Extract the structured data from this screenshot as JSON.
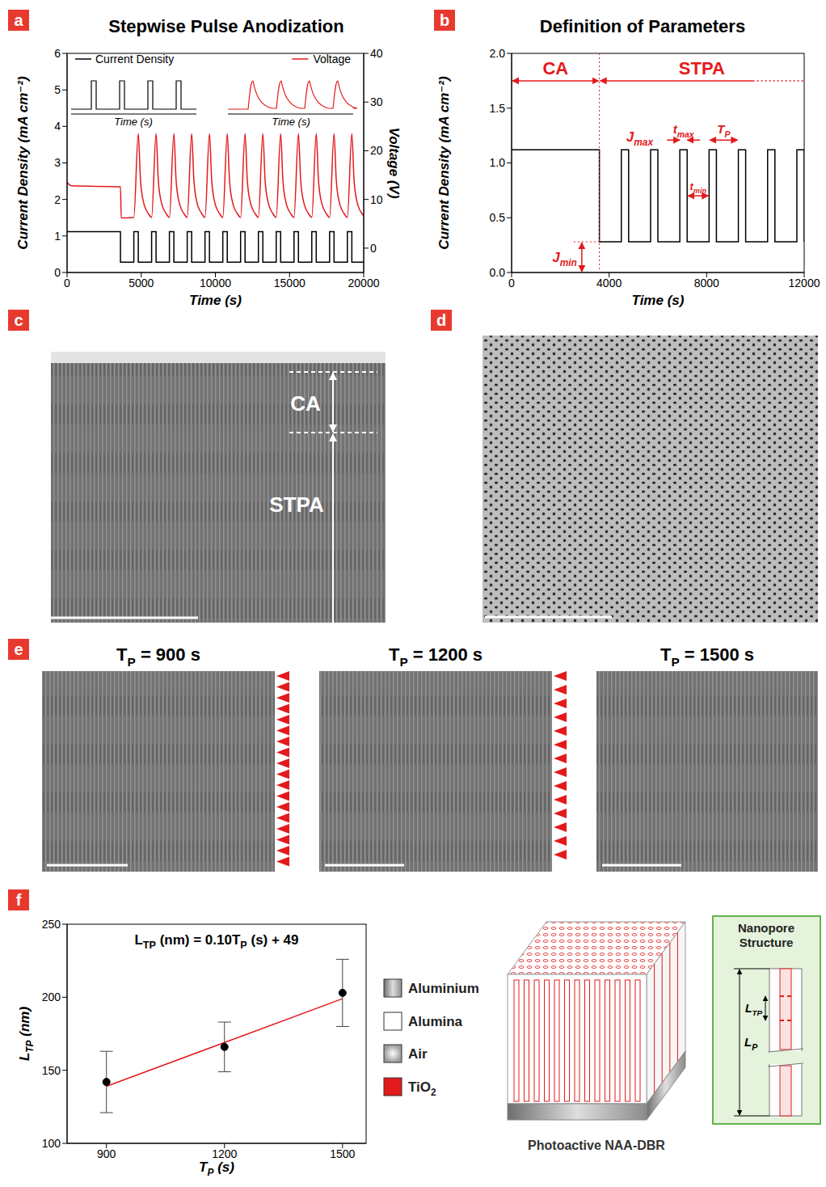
{
  "chart_data": [
    {
      "panel": "a",
      "type": "line",
      "title": "Stepwise Pulse Anodization",
      "x_label": "Time (s)",
      "y_label": "Current Density (mA cm⁻²)",
      "y2_label": "Voltage (V)",
      "xlim": [
        0,
        20000
      ],
      "xticks": [
        0,
        5000,
        10000,
        15000,
        20000
      ],
      "ylim": [
        0,
        6
      ],
      "yticks": [
        0,
        1,
        2,
        3,
        4,
        5,
        6
      ],
      "y2lim": [
        -5,
        40
      ],
      "y2ticks": [
        0,
        10,
        20,
        30,
        40
      ],
      "legend": "top",
      "series": [
        {
          "name": "Current Density",
          "type": "step",
          "color": "#000000",
          "x": [
            0,
            3600,
            4500,
            4800,
            5700,
            6000,
            6900,
            7200,
            8100,
            8400,
            9300,
            9600,
            10500,
            10800,
            11700,
            12000,
            12900,
            13200,
            14100,
            14400,
            15300,
            15600,
            16500,
            16800,
            17700,
            18000,
            18900,
            19200,
            20000
          ],
          "values": [
            1.12,
            0.28,
            1.12,
            0.28,
            1.12,
            0.28,
            1.12,
            0.28,
            1.12,
            0.28,
            1.12,
            0.28,
            1.12,
            0.28,
            1.12,
            0.28,
            1.12,
            0.28,
            1.12,
            0.28,
            1.12,
            0.28,
            1.12,
            0.28,
            1.12,
            0.28,
            1.12,
            0.28,
            0.28
          ]
        },
        {
          "name": "Voltage",
          "type": "line",
          "color": "#e31a1c",
          "axis": "y2",
          "x": [
            0,
            300,
            3600,
            3650,
            4500,
            4800,
            4950,
            5150,
            5500,
            5700,
            6000,
            6150,
            6350,
            6700,
            6900,
            7200,
            7350,
            7550,
            7900,
            8100,
            8400,
            8550,
            8750,
            9100,
            9300,
            9600,
            9750,
            9950,
            10300,
            10500,
            10800,
            10950,
            11150,
            11500,
            11700,
            12000,
            12150,
            12350,
            12700,
            12900,
            13200,
            13350,
            13550,
            13900,
            14100,
            14400,
            14550,
            14750,
            15100,
            15300,
            15600,
            15750,
            15950,
            16300,
            16500,
            16800,
            16950,
            17150,
            17500,
            17700,
            18000,
            18150,
            18350,
            18700,
            18900,
            19200,
            19350,
            19550,
            19900,
            20000
          ],
          "values": [
            13.5,
            12.8,
            12.6,
            6.2,
            6.3,
            23.5,
            14,
            9.5,
            7,
            6.3,
            23.5,
            14,
            9.5,
            7,
            6.3,
            23.5,
            14,
            9.5,
            7,
            6.3,
            23.5,
            14,
            9.5,
            7,
            6.3,
            23.5,
            14,
            9.5,
            7,
            6.3,
            23.5,
            14,
            9.5,
            7,
            6.3,
            23.5,
            14,
            9.5,
            7,
            6.3,
            23.5,
            14,
            9.5,
            7,
            6.3,
            23.5,
            14,
            9.5,
            7,
            6.3,
            23.5,
            14,
            9.5,
            7,
            6.3,
            23.5,
            14,
            9.5,
            7,
            6.3,
            23.5,
            14,
            9.5,
            7,
            6.3,
            23.5,
            14,
            9.5,
            7,
            6.6
          ]
        }
      ],
      "insets": [
        {
          "x_label": "Time (s)",
          "color": "#000000"
        },
        {
          "x_label": "Time (s)",
          "color": "#e31a1c"
        }
      ]
    },
    {
      "panel": "b",
      "type": "line",
      "title": "Definition of Parameters",
      "x_label": "Time (s)",
      "y_label": "Current Density (mA cm⁻²)",
      "xlim": [
        0,
        12000
      ],
      "xticks": [
        0,
        4000,
        8000,
        12000
      ],
      "ylim": [
        0,
        2
      ],
      "yticks": [
        {
          "value": 0,
          "label": "0.0"
        },
        0.5,
        {
          "value": 1,
          "label": "1.0"
        },
        1.5,
        {
          "value": 2,
          "label": "2.0"
        }
      ],
      "series": [
        {
          "type": "step",
          "color": "#000000",
          "x": [
            0,
            3600,
            4500,
            4800,
            5700,
            6000,
            6900,
            7200,
            8100,
            8400,
            9300,
            9600,
            10500,
            10800,
            11700,
            12000
          ],
          "values": [
            1.12,
            0.28,
            1.12,
            0.28,
            1.12,
            0.28,
            1.12,
            0.28,
            1.12,
            0.28,
            1.12,
            0.28,
            1.12,
            0.28,
            1.12,
            0.28
          ]
        }
      ],
      "labels": {
        "ca": "CA",
        "stpa": "STPA",
        "j_max": [
          "J",
          {
            "sub": "max"
          }
        ],
        "t_max": [
          "t",
          {
            "sub": "max"
          }
        ],
        "t_p": [
          "T",
          {
            "sub": "P"
          }
        ],
        "t_min": [
          "t",
          {
            "sub": "min"
          }
        ],
        "j_min": [
          "J",
          {
            "sub": "min"
          }
        ]
      }
    },
    {
      "panel": "f",
      "type": "scatter",
      "title": [
        "L",
        {
          "sub": "TP"
        },
        " (nm) = 0.10",
        "T",
        {
          "sub": "P"
        },
        " (s) + 49"
      ],
      "x_label": [
        "T",
        {
          "sub": "P"
        },
        " (s)"
      ],
      "y_label": [
        "L",
        {
          "sub": "TP"
        },
        " (nm)"
      ],
      "xlim": [
        800,
        1560
      ],
      "xticks": [
        900,
        1200,
        1500
      ],
      "ylim": [
        100,
        250
      ],
      "yticks": [
        100,
        150,
        200,
        250
      ],
      "x": [
        900,
        1200,
        1500
      ],
      "values": [
        142,
        166,
        203
      ],
      "errors": [
        21,
        17,
        23
      ],
      "color": "#000000",
      "marker": "circle",
      "fit": {
        "slope": 0.1,
        "intercept": 49,
        "x": [
          900,
          1500
        ],
        "color": "#e31a1c"
      }
    }
  ],
  "images": {
    "c": {
      "panel": "c",
      "labels": [
        "CA",
        "STPA"
      ]
    },
    "d": {
      "panel": "d"
    },
    "e": {
      "panel": "e",
      "titles": [
        [
          "T",
          {
            "sub": "P"
          },
          " = 900 s"
        ],
        [
          "T",
          {
            "sub": "P"
          },
          " = 1200 s"
        ],
        [
          "T",
          {
            "sub": "P"
          },
          " = 1500 s"
        ]
      ]
    }
  },
  "schematic": {
    "legend": [
      {
        "label": "Aluminium",
        "color": "#9e9e9e"
      },
      {
        "label": "Alumina",
        "color": "#ffffff"
      },
      {
        "label": "Air",
        "color": "#c8c8c8"
      },
      {
        "label": [
          "TiO",
          {
            "sub": "2"
          }
        ],
        "color": "#e31a1c"
      }
    ],
    "caption": "Photoactive NAA-DBR",
    "inset_title": "Nanopore Structure",
    "dimensions": [
      [
        "L",
        {
          "sub": "TP"
        }
      ],
      [
        "L",
        {
          "sub": "P"
        }
      ]
    ]
  }
}
